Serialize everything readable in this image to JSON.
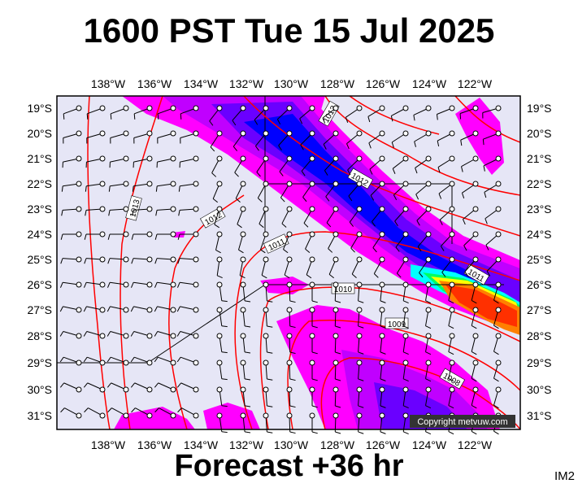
{
  "title": "1600 PST Tue 15 Jul 2025",
  "subtitle": "Forecast +36 hr",
  "image_tag": "IM2",
  "copyright": "Copyright metvuw.com",
  "lon_labels": [
    "138°W",
    "136°W",
    "134°W",
    "132°W",
    "130°W",
    "128°W",
    "126°W",
    "124°W",
    "122°W"
  ],
  "lat_labels": [
    "19°S",
    "20°S",
    "21°S",
    "22°S",
    "23°S",
    "24°S",
    "25°S",
    "26°S",
    "27°S",
    "28°S",
    "29°S",
    "30°S",
    "31°S"
  ],
  "isobar_labels": [
    "1013",
    "1013",
    "1012",
    "1012",
    "1011",
    "1011",
    "1010",
    "1009",
    "1008"
  ],
  "colors": {
    "background": "#e6e6f6",
    "isobar": "#ff0000",
    "rain_light": "#ff00ff",
    "rain_mid": "#c000ff",
    "rain_heavy": "#6a00ff",
    "rain_deep": "#0000ff",
    "rain_cyan": "#00ffff",
    "rain_green": "#00ff60",
    "rain_yellow": "#ffff00",
    "rain_orange": "#ff8000",
    "rain_red": "#ff3000"
  }
}
